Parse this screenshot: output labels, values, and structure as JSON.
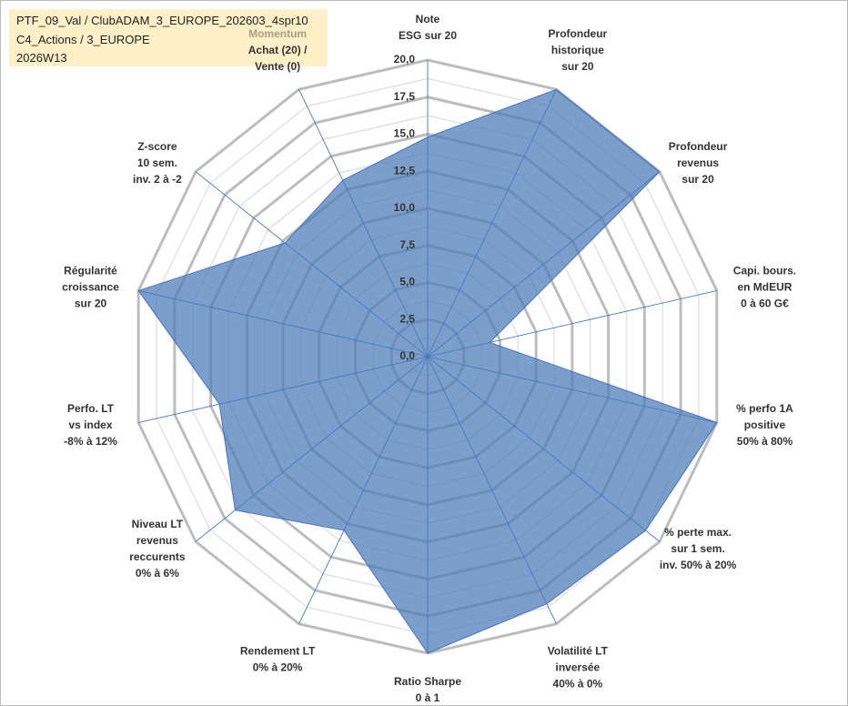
{
  "header": {
    "lines": [
      "PTF_09_Val / ClubADAM_3_EUROPE_202603_4spr10",
      "C4_Actions / 3_EUROPE",
      "2026W13"
    ]
  },
  "chart_data": {
    "type": "radar",
    "categories": [
      [
        "Note",
        "ESG sur 20"
      ],
      [
        "Profondeur",
        "historique",
        "sur 20"
      ],
      [
        "Profondeur",
        "revenus",
        "sur 20"
      ],
      [
        "Capi. bours.",
        "en MdEUR",
        "0 à 60 G€"
      ],
      [
        "% perfo 1A",
        "positive",
        "50% à 80%"
      ],
      [
        "% perte max.",
        "sur 1 sem.",
        "inv. 50% à 20%"
      ],
      [
        "Volatilité LT",
        "inversée",
        "40% à 0%"
      ],
      [
        "Ratio Sharpe",
        "0 à 1"
      ],
      [
        "Rendement LT",
        "0% à 20%"
      ],
      [
        "Niveau LT",
        "revenus",
        "reccurents",
        "0% à 6%"
      ],
      [
        "Perfo. LT",
        "vs index",
        "-8% à 12%"
      ],
      [
        "Régularité",
        "croissance",
        "sur 20"
      ],
      [
        "Z-score",
        "10 sem.",
        "inv. 2 à -2"
      ],
      [
        "Momentum",
        "Achat (20) /",
        "Vente (0)"
      ]
    ],
    "series": [
      {
        "color": "#4f7fb8",
        "values": [
          14.8,
          20,
          20,
          4.3,
          20,
          18.8,
          18.5,
          20,
          13.0,
          16.6,
          14.4,
          20,
          12.3,
          13.2
        ]
      }
    ],
    "ylim": [
      0,
      20
    ],
    "yticks": [
      {
        "value": 0,
        "label": "0,0"
      },
      {
        "value": 2.5,
        "label": "2,5"
      },
      {
        "value": 5,
        "label": "5,0"
      },
      {
        "value": 7.5,
        "label": "7,5"
      },
      {
        "value": 10,
        "label": "10,0"
      },
      {
        "value": 12.5,
        "label": "12,5"
      },
      {
        "value": 15,
        "label": "15,0"
      },
      {
        "value": 17.5,
        "label": "17,5"
      },
      {
        "value": 20,
        "label": "20,0"
      }
    ],
    "grid": true
  }
}
